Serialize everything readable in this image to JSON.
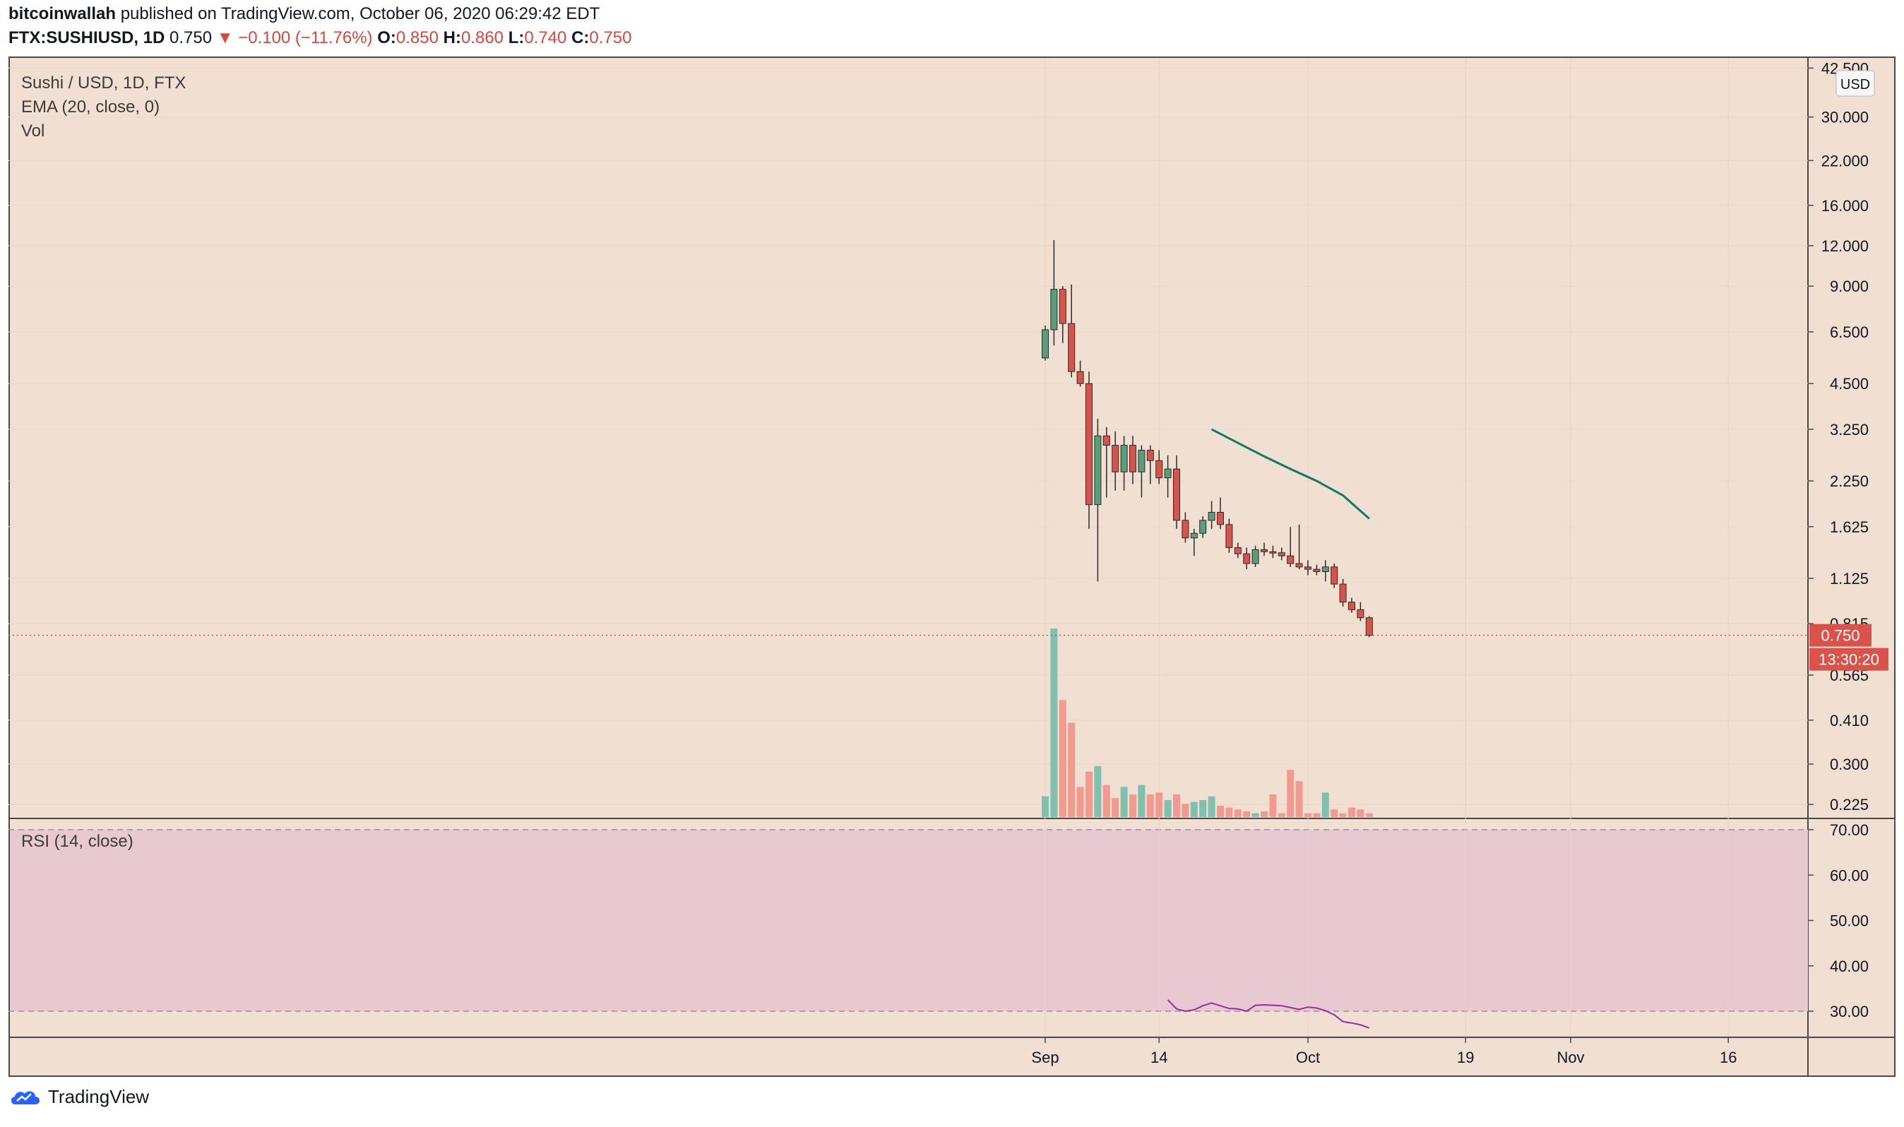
{
  "header": {
    "author": "bitcoinwallah",
    "published_text": "published on TradingView.com, October 06, 2020 06:29:42 EDT",
    "symbol_line": "FTX:SUSHIUSD, 1D",
    "last": "0.750",
    "change": "▼ −0.100 (−11.76%)",
    "o_label": "O:",
    "o": "0.850",
    "h_label": "H:",
    "h": "0.860",
    "l_label": "L:",
    "l": "0.740",
    "c_label": "C:",
    "c": "0.750"
  },
  "legend": {
    "main": "Sushi / USD, 1D, FTX",
    "ema": "EMA (20, close, 0)",
    "vol": "Vol",
    "rsi": "RSI (14, close)"
  },
  "footer": {
    "brand": "TradingView",
    "logo_icon": "tradingview-cloud-icon"
  },
  "chart_data": {
    "type": "candlestick",
    "currency_label": "USD",
    "price_scale": "log",
    "price_ticks": [
      "42.500",
      "30.000",
      "22.000",
      "16.000",
      "12.000",
      "9.000",
      "6.500",
      "4.500",
      "3.250",
      "2.250",
      "1.625",
      "1.125",
      "0.815",
      "0.565",
      "0.410",
      "0.300",
      "0.225"
    ],
    "rsi_ticks": [
      "70.00",
      "60.00",
      "50.00",
      "40.00",
      "30.00"
    ],
    "x_ticks": [
      "Sep",
      "14",
      "Oct",
      "19",
      "Nov",
      "16"
    ],
    "last_price_label": "0.750",
    "countdown_label": "13:30:20",
    "colors": {
      "up": "#5a9e7b",
      "down": "#d9534a",
      "ema": "#0e7a66",
      "rsi": "#9c27b0",
      "vol_up": "#7fc0ae",
      "vol_down": "#f29a90",
      "bg": "#f1e0d1",
      "rsi_band": "#e9c9d1"
    },
    "candles": [
      {
        "o": 5.4,
        "h": 6.8,
        "l": 5.3,
        "c": 6.6,
        "v": 0.11
      },
      {
        "o": 6.6,
        "h": 12.5,
        "l": 5.9,
        "c": 8.8,
        "v": 1.0
      },
      {
        "o": 8.8,
        "h": 9.0,
        "l": 6.0,
        "c": 6.9,
        "v": 0.62
      },
      {
        "o": 6.9,
        "h": 9.1,
        "l": 4.7,
        "c": 4.9,
        "v": 0.5
      },
      {
        "o": 4.9,
        "h": 5.3,
        "l": 4.4,
        "c": 4.5,
        "v": 0.16
      },
      {
        "o": 4.5,
        "h": 4.9,
        "l": 1.6,
        "c": 1.9,
        "v": 0.24
      },
      {
        "o": 1.9,
        "h": 3.5,
        "l": 1.1,
        "c": 3.1,
        "v": 0.27
      },
      {
        "o": 3.1,
        "h": 3.3,
        "l": 2.0,
        "c": 2.9,
        "v": 0.17
      },
      {
        "o": 2.9,
        "h": 3.2,
        "l": 2.1,
        "c": 2.4,
        "v": 0.1
      },
      {
        "o": 2.4,
        "h": 3.1,
        "l": 2.1,
        "c": 2.9,
        "v": 0.16
      },
      {
        "o": 2.9,
        "h": 3.1,
        "l": 2.2,
        "c": 2.4,
        "v": 0.12
      },
      {
        "o": 2.4,
        "h": 2.9,
        "l": 2.0,
        "c": 2.8,
        "v": 0.17
      },
      {
        "o": 2.8,
        "h": 2.9,
        "l": 2.2,
        "c": 2.6,
        "v": 0.12
      },
      {
        "o": 2.6,
        "h": 2.8,
        "l": 2.2,
        "c": 2.3,
        "v": 0.13
      },
      {
        "o": 2.3,
        "h": 2.7,
        "l": 2.0,
        "c": 2.45,
        "v": 0.09
      },
      {
        "o": 2.45,
        "h": 2.7,
        "l": 1.6,
        "c": 1.7,
        "v": 0.12
      },
      {
        "o": 1.7,
        "h": 1.8,
        "l": 1.45,
        "c": 1.5,
        "v": 0.07
      },
      {
        "o": 1.5,
        "h": 1.6,
        "l": 1.32,
        "c": 1.55,
        "v": 0.08
      },
      {
        "o": 1.55,
        "h": 1.75,
        "l": 1.5,
        "c": 1.7,
        "v": 0.09
      },
      {
        "o": 1.7,
        "h": 1.95,
        "l": 1.6,
        "c": 1.8,
        "v": 0.11
      },
      {
        "o": 1.8,
        "h": 2.0,
        "l": 1.6,
        "c": 1.65,
        "v": 0.06
      },
      {
        "o": 1.65,
        "h": 1.72,
        "l": 1.35,
        "c": 1.4,
        "v": 0.05
      },
      {
        "o": 1.4,
        "h": 1.45,
        "l": 1.3,
        "c": 1.34,
        "v": 0.04
      },
      {
        "o": 1.34,
        "h": 1.4,
        "l": 1.2,
        "c": 1.25,
        "v": 0.03
      },
      {
        "o": 1.25,
        "h": 1.42,
        "l": 1.22,
        "c": 1.38,
        "v": 0.02
      },
      {
        "o": 1.38,
        "h": 1.45,
        "l": 1.32,
        "c": 1.36,
        "v": 0.03
      },
      {
        "o": 1.36,
        "h": 1.42,
        "l": 1.3,
        "c": 1.35,
        "v": 0.12
      },
      {
        "o": 1.35,
        "h": 1.4,
        "l": 1.28,
        "c": 1.32,
        "v": 0.02
      },
      {
        "o": 1.32,
        "h": 1.62,
        "l": 1.22,
        "c": 1.25,
        "v": 0.25
      },
      {
        "o": 1.25,
        "h": 1.65,
        "l": 1.2,
        "c": 1.22,
        "v": 0.19
      },
      {
        "o": 1.22,
        "h": 1.28,
        "l": 1.15,
        "c": 1.2,
        "v": 0.02
      },
      {
        "o": 1.2,
        "h": 1.24,
        "l": 1.15,
        "c": 1.18,
        "v": 0.02
      },
      {
        "o": 1.18,
        "h": 1.28,
        "l": 1.1,
        "c": 1.22,
        "v": 0.13
      },
      {
        "o": 1.22,
        "h": 1.25,
        "l": 1.05,
        "c": 1.08,
        "v": 0.04
      },
      {
        "o": 1.08,
        "h": 1.12,
        "l": 0.92,
        "c": 0.95,
        "v": 0.02
      },
      {
        "o": 0.95,
        "h": 0.98,
        "l": 0.88,
        "c": 0.9,
        "v": 0.05
      },
      {
        "o": 0.9,
        "h": 0.95,
        "l": 0.83,
        "c": 0.85,
        "v": 0.04
      },
      {
        "o": 0.85,
        "h": 0.86,
        "l": 0.74,
        "c": 0.75,
        "v": 0.02
      }
    ],
    "ema": [
      {
        "i": 19,
        "v": 3.25
      },
      {
        "i": 22,
        "v": 2.95
      },
      {
        "i": 25,
        "v": 2.68
      },
      {
        "i": 28,
        "v": 2.45
      },
      {
        "i": 31,
        "v": 2.25
      },
      {
        "i": 34,
        "v": 2.03
      },
      {
        "i": 37,
        "v": 1.72
      }
    ],
    "rsi": [
      {
        "i": 14,
        "v": 32.5
      },
      {
        "i": 15,
        "v": 30.5
      },
      {
        "i": 16,
        "v": 30.0
      },
      {
        "i": 17,
        "v": 30.3
      },
      {
        "i": 18,
        "v": 31.2
      },
      {
        "i": 19,
        "v": 31.8
      },
      {
        "i": 20,
        "v": 31.2
      },
      {
        "i": 21,
        "v": 30.6
      },
      {
        "i": 22,
        "v": 30.5
      },
      {
        "i": 23,
        "v": 30.0
      },
      {
        "i": 24,
        "v": 31.3
      },
      {
        "i": 25,
        "v": 31.4
      },
      {
        "i": 26,
        "v": 31.3
      },
      {
        "i": 27,
        "v": 31.2
      },
      {
        "i": 28,
        "v": 30.8
      },
      {
        "i": 29,
        "v": 30.4
      },
      {
        "i": 30,
        "v": 30.9
      },
      {
        "i": 31,
        "v": 30.7
      },
      {
        "i": 32,
        "v": 30.1
      },
      {
        "i": 33,
        "v": 29.2
      },
      {
        "i": 34,
        "v": 27.7
      },
      {
        "i": 35,
        "v": 27.4
      },
      {
        "i": 36,
        "v": 27.0
      },
      {
        "i": 37,
        "v": 26.3
      }
    ]
  }
}
